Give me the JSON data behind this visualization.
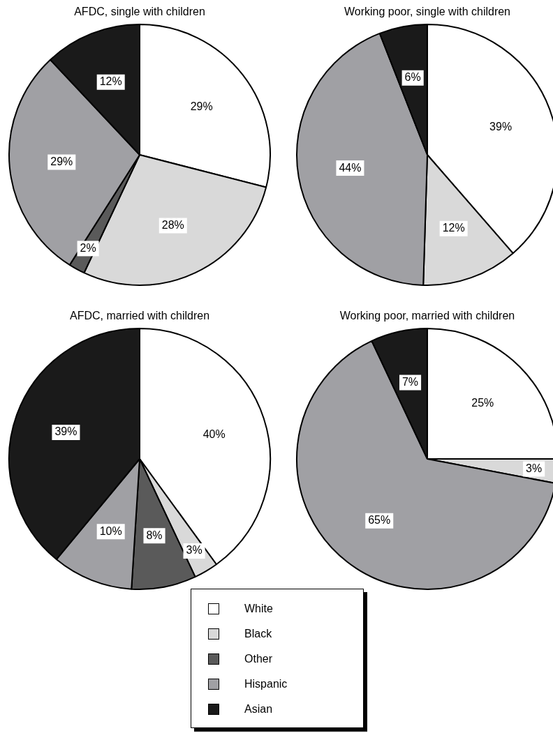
{
  "chart_data": [
    {
      "type": "pie",
      "title": "AFDC, single with children",
      "categories": [
        "White",
        "Black",
        "Other",
        "Hispanic",
        "Asian"
      ],
      "values": [
        29,
        28,
        2,
        29,
        12
      ],
      "colors": [
        "#ffffff",
        "#d9d9d9",
        "#5a5a5a",
        "#a0a0a4",
        "#1a1a1a"
      ],
      "value_labels": [
        "29%",
        "28%",
        "2%",
        "29%",
        "12%"
      ],
      "legend": "bottom"
    },
    {
      "type": "pie",
      "title": "Working poor, single with children",
      "categories": [
        null,
        null,
        null,
        null
      ],
      "values": [
        39,
        12,
        44,
        6
      ],
      "colors": [
        "#ffffff",
        "#d9d9d9",
        "#a0a0a4",
        "#1a1a1a"
      ],
      "value_labels": [
        "39%",
        "12%",
        "44%",
        "6%"
      ]
    },
    {
      "type": "pie",
      "title": "AFDC, married with children",
      "categories": [
        null,
        null,
        null,
        null,
        null
      ],
      "values": [
        40,
        3,
        8,
        10,
        39
      ],
      "colors": [
        "#ffffff",
        "#d9d9d9",
        "#5a5a5a",
        "#a0a0a4",
        "#1a1a1a"
      ],
      "value_labels": [
        "40%",
        "3%",
        "8%",
        "10%",
        "39%"
      ]
    },
    {
      "type": "pie",
      "title": "Working poor, married with children",
      "categories": [
        null,
        null,
        null,
        null
      ],
      "values": [
        25,
        3,
        65,
        7
      ],
      "colors": [
        "#ffffff",
        "#d9d9d9",
        "#a0a0a4",
        "#1a1a1a"
      ],
      "value_labels": [
        "25%",
        "3%",
        "65%",
        "7%"
      ]
    }
  ]
}
